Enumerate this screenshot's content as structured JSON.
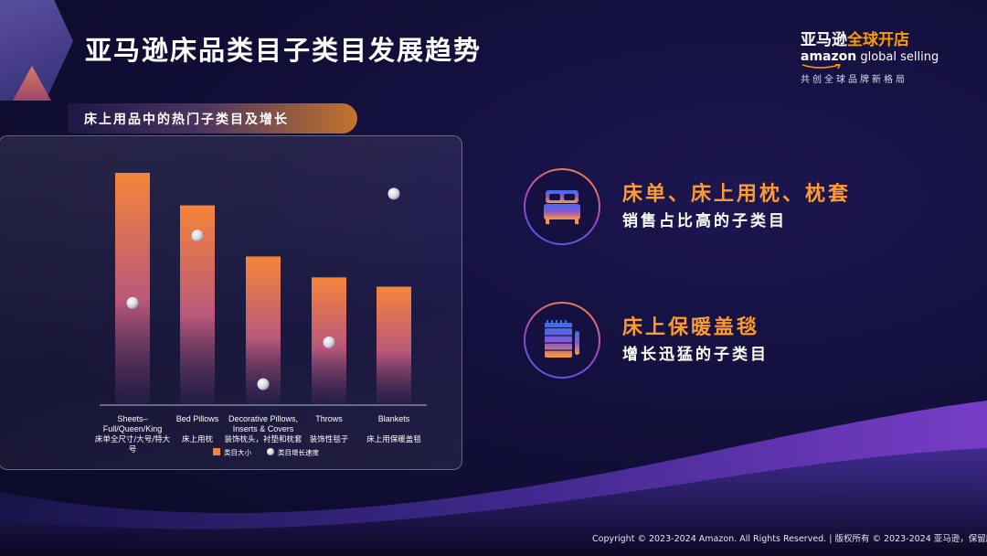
{
  "slide": {
    "title": "亚马逊床品类目子类目发展趋势",
    "subtitle": "床上用品中的热门子类目及增长",
    "copyright": "Copyright © 2023-2024 Amazon. All Rights Reserved. | 版权所有 © 2023-2024 亚马逊，保留所有权"
  },
  "logo": {
    "cn_part1": "亚马逊",
    "cn_part2": "全球开店",
    "en_part1": "amazon",
    "en_part2": " global selling",
    "tagline": "共创全球品牌新格局"
  },
  "highlights": [
    {
      "icon": "bed-icon",
      "headline": "床单、床上用枕、枕套",
      "caption": "销售占比高的子类目"
    },
    {
      "icon": "blanket-icon",
      "headline": "床上保暖盖毯",
      "caption": "增长迅猛的子类目"
    }
  ],
  "colors": {
    "accent": "#ff9a2e",
    "bar_top": "#f5853a",
    "bar_bottom": "#2a2050",
    "dot": "#f0f0f5"
  },
  "chart_data": {
    "type": "bar",
    "categories": [
      {
        "en": "Sheets–Full/Queen/King",
        "cn": "床单全尺寸/大号/特大号"
      },
      {
        "en": "Bed Pillows",
        "cn": "床上用枕"
      },
      {
        "en": "Decorative Pillows, Inserts & Covers",
        "cn": "装饰枕头，衬垫和枕套"
      },
      {
        "en": "Throws",
        "cn": "装饰性毯子"
      },
      {
        "en": "Blankets",
        "cn": "床上用保暖盖毯"
      }
    ],
    "series": [
      {
        "name": "类目大小",
        "kind": "bar",
        "values": [
          100,
          86,
          64,
          55,
          51
        ]
      },
      {
        "name": "类目增长速度",
        "kind": "dot",
        "values": [
          44,
          73,
          9,
          27,
          91
        ]
      }
    ],
    "ylim": [
      0,
      100
    ],
    "grid": false,
    "legend": "bottom"
  }
}
